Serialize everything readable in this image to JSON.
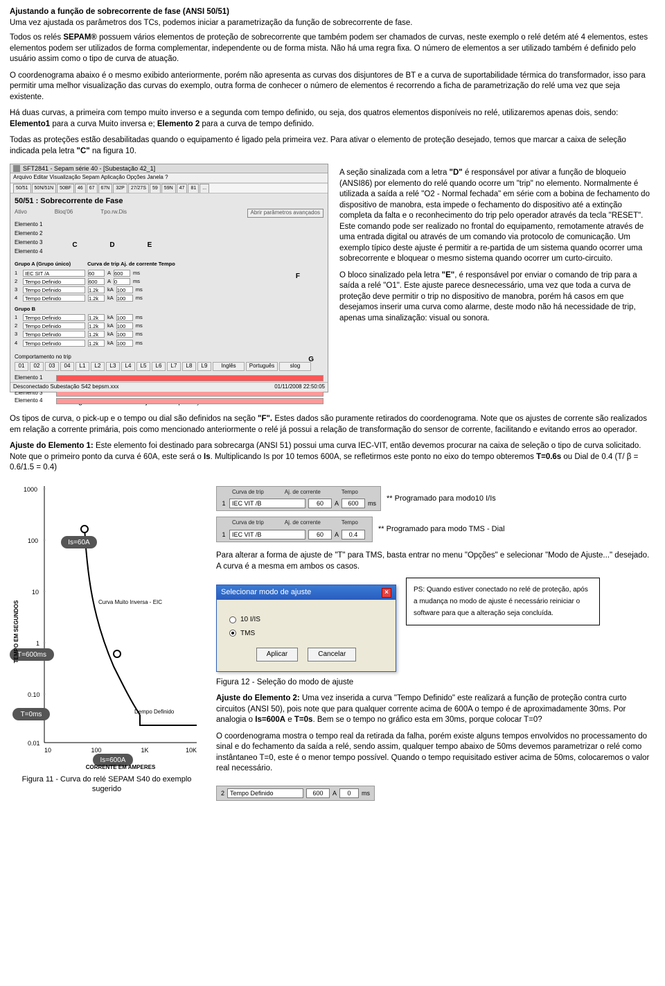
{
  "title": "Ajustando a função de sobrecorrente de fase (ANSI 50/51)",
  "intro": "Uma vez ajustada os parâmetros dos TCs, podemos iniciar a parametrização da função de sobrecorrente de fase.",
  "p1a": "Todos os relés ",
  "p1b": "SEPAM",
  "p1c": " possuem vários elementos de proteção de sobrecorrente que também podem ser chamados de curvas, neste exemplo o relé detém até 4 elementos, estes elementos podem ser utilizados de forma complementar, independente ou de forma mista. Não há uma regra fixa. O número de elementos a ser utilizado também é definido pelo usuário assim como o tipo de curva de atuação.",
  "p2": "O coordenograma abaixo é o mesmo exibido anteriormente, porém não apresenta as curvas dos disjuntores de BT e a curva de suportabilidade térmica do transformador, isso para permitir uma melhor visualização das curvas do exemplo, outra forma de conhecer o número de elementos é recorrendo a ficha de parametrização do relé uma vez que seja existente.",
  "p3a": "Há duas curvas, a primeira com tempo muito inverso e a segunda com tempo definido, ou seja, dos quatros elementos disponíveis no relé, utilizaremos apenas dois, sendo: ",
  "p3b": "Elemento1",
  "p3c": " para a curva Muito inversa e; ",
  "p3d": "Elemento 2",
  "p3e": " para a curva de tempo definido.",
  "p4a": "Todas as proteções estão desabilitadas quando o equipamento é ligado pela primeira vez. Para ativar o elemento de proteção desejado, temos que marcar a caixa de seleção indicada pela letra ",
  "p4b": "\"C\"",
  "p4c": " na figura 10.",
  "fig10": {
    "titlebar": "SFT2841 - Sepam série 40 - [Subestação 42_1]",
    "menubar": "Arquivo  Editar  Visualização  Sepam  Aplicação  Opções  Janela  ?",
    "tabs": [
      "50/51",
      "50N/51N",
      "50BF",
      "46",
      "67",
      "67N",
      "32P",
      "27/27S",
      "59",
      "59N",
      "47",
      "81",
      "..."
    ],
    "panel_title": "50/51 : Sobrecorrente de Fase",
    "sub_labels": {
      "c": "Ativo",
      "d": "Bloq'06",
      "e": "Tpo.rw.Dis"
    },
    "btn_params": "Abrir parâmetros avançados",
    "elem_labels": [
      "Elemento 1",
      "Elemento 2",
      "Elemento 3",
      "Elemento 4"
    ],
    "letters": {
      "c": "C",
      "d": "D",
      "e": "E",
      "f": "F",
      "g": "G"
    },
    "grpA": "Grupo A  (Grupo único)",
    "grpA_cols": "Curva de trip          Aj. de corrente     Tempo",
    "grpA_rows": [
      {
        "n": "1",
        "curve": "IEC SIT /A",
        "a": "60",
        "u": "A",
        "t": "600",
        "tu": "ms"
      },
      {
        "n": "2",
        "curve": "Tempo Definido",
        "a": "600",
        "u": "A",
        "t": "0",
        "tu": "ms"
      },
      {
        "n": "3",
        "curve": "Tempo Definido",
        "a": "1.2k",
        "u": "kA",
        "t": "100",
        "tu": "ms"
      },
      {
        "n": "4",
        "curve": "Tempo Definido",
        "a": "1.2k",
        "u": "kA",
        "t": "100",
        "tu": "ms"
      }
    ],
    "grpB": "Grupo B",
    "grpB_rows": [
      {
        "n": "1",
        "curve": "Tempo Definido",
        "a": "1.2k",
        "u": "kA",
        "t": "100",
        "tu": "ms"
      },
      {
        "n": "2",
        "curve": "Tempo Definido",
        "a": "1.2k",
        "u": "kA",
        "t": "100",
        "tu": "ms"
      },
      {
        "n": "3",
        "curve": "Tempo Definido",
        "a": "1.2k",
        "u": "kA",
        "t": "100",
        "tu": "ms"
      },
      {
        "n": "4",
        "curve": "Tempo Definido",
        "a": "1.2k",
        "u": "kA",
        "t": "100",
        "tu": "ms"
      }
    ],
    "comport": "Comportamento no trip",
    "grid_hdr": [
      "01",
      "02",
      "03",
      "04",
      "L1",
      "L2",
      "L3",
      "L4",
      "L5",
      "L6",
      "L7",
      "L8",
      "L9"
    ],
    "lang": [
      "Inglês",
      "Português",
      "slog"
    ],
    "bars": [
      "Elemento 1",
      "Elemento 2",
      "Elemento 3",
      "Elemento 4"
    ],
    "status_l": "Desconectado   Subestação S42     bepsm.xxx",
    "status_r": "01/11/2008 22:50:05"
  },
  "fig10_caption": "Figura 10 - Tela dos ajustes de proteção - 50/51",
  "right10_p1a": "A seção sinalizada com a letra ",
  "right10_p1b": "\"D\"",
  "right10_p1c": " é responsável por ativar a função de bloqueio (ANSI86) por elemento do relé quando ocorre um \"trip\" no elemento. Normalmente é utilizada a saída a relé \"O2 - Normal fechada\" em série com a bobina de fechamento do dispositivo de manobra, esta impede o fechamento do dispositivo até a extinção completa da falta e o reconhecimento do trip pelo operador através da tecla \"RESET\". Este comando pode ser realizado no frontal do equipamento, remotamente através de uma entrada digital ou através de um comando via protocolo de comunicação. Um exemplo típico deste ajuste é permitir a re-partida de um sistema quando ocorrer uma sobrecorrente e bloquear o mesmo sistema quando ocorrer um curto-circuito.",
  "right10_p2a": "O bloco sinalizado pela letra ",
  "right10_p2b": "\"E\"",
  "right10_p2c": ", é responsável por enviar o comando de trip para a saída a relé \"O1\". Este ajuste parece desnecessário, uma vez que toda a curva de proteção deve permitir o trip no dispositivo de manobra, porém há casos em que desejamos inserir uma curva como alarme, deste modo não há necessidade de trip, apenas uma sinalização: visual ou sonora.",
  "p5a": "Os tipos de curva, o pick-up e o tempo ou dial são definidos na seção ",
  "p5b": "\"F\".",
  "p5c": " Estes dados são puramente retirados do coordenograma. Note que os ajustes de corrente são realizados em relação a corrente primária, pois como mencionado anteriormente o relé já possui a relação de transformação do sensor de corrente, facilitando e evitando erros ao operador.",
  "p6a": "Ajuste do Elemento 1:",
  "p6b": " Este elemento foi destinado para sobrecarga (ANSI 51) possui uma curva IEC-VIT, então devemos procurar na caixa de seleção o tipo de curva solicitado. Note que o primeiro ponto da curva é 60A, este será o ",
  "p6c": "Is",
  "p6d": ".  Multiplicando Is por 10 temos 600A, se refletirmos este ponto no eixo do tempo obteremos ",
  "p6e": "T=0.6s",
  "p6f": " ou Dial de 0.4 (T/ β = 0.6/1.5 = 0.4)",
  "chart": {
    "xlabel": "CORRENTE EM AMPERES",
    "ylabel": "TEMPO EM SEGUNDOS",
    "xticks": [
      "10",
      "100",
      "1K",
      "10K"
    ],
    "yticks": [
      "1000",
      "100",
      "10",
      "1",
      "0.10",
      "0.01"
    ],
    "curve_label": "Curva Muito Inversa - EIC",
    "dt_label": "Dempo Definido",
    "badges": {
      "is60": "Is=60A",
      "t600": "T=600ms",
      "t0": "T=0ms",
      "is600": "Is=600A"
    }
  },
  "fig11_caption": "Figura 11 - Curva do relé SEPAM S40 do exemplo sugerido",
  "trip_hdr": {
    "a": "Curva de trip",
    "b": "Aj. de corrente",
    "c": "Tempo"
  },
  "trip_row1": {
    "lead": "1",
    "curve": "IEC VIT /B",
    "a": "60",
    "au": "A",
    "t": "600",
    "tu": "ms"
  },
  "trip_row2": {
    "lead": "1",
    "curve": "IEC VIT /B",
    "a": "60",
    "au": "A",
    "t": "0.4",
    "tu": ""
  },
  "note1": "** Programado para modo10 I/Is",
  "note2": "** Programado para modo TMS - Dial",
  "p7": "Para alterar a forma de ajuste de \"T\" para TMS, basta entrar no menu \"Opções\" e selecionar \"Modo de Ajuste...\" desejado. A curva é a mesma em ambos os casos.",
  "dialog": {
    "title": "Selecionar modo de ajuste",
    "opt1": "10 I/IS",
    "opt2": "TMS",
    "btn_apply": "Aplicar",
    "btn_cancel": "Cancelar"
  },
  "ps_box": "PS: Quando estiver conectado no relé de proteção, após a mudança no modo de ajuste é necessário reiniciar o software para que a alteração seja concluída.",
  "fig12_caption": "Figura 12 - Seleção do modo de ajuste",
  "p8a": "Ajuste do Elemento 2:",
  "p8b": " Uma vez inserida a curva \"Tempo Definido\" este realizará a função de proteção contra curto circuitos (ANSI 50), pois note que para qualquer corrente acima de 600A o tempo é de aproximadamente 30ms. Por analogia o ",
  "p8c": "Is=600A",
  "p8d": " e ",
  "p8e": "T=0s",
  "p8f": ". Bem se o tempo no gráfico esta em 30ms, porque colocar T=0?",
  "p9": "O coordenograma mostra o tempo real da retirada da falha, porém existe alguns tempos envolvidos no processamento do sinal e do fechamento da saída a relé, sendo assim, qualquer tempo abaixo de 50ms devemos parametrizar o relé como instântaneo T=0, este é o menor tempo possível. Quando o tempo requisitado estiver acima de 50ms, colocaremos o valor real necessário.",
  "tempo_def": {
    "lead": "2",
    "curve": "Tempo Definido",
    "a": "600",
    "au": "A",
    "t": "0",
    "tu": "ms"
  }
}
